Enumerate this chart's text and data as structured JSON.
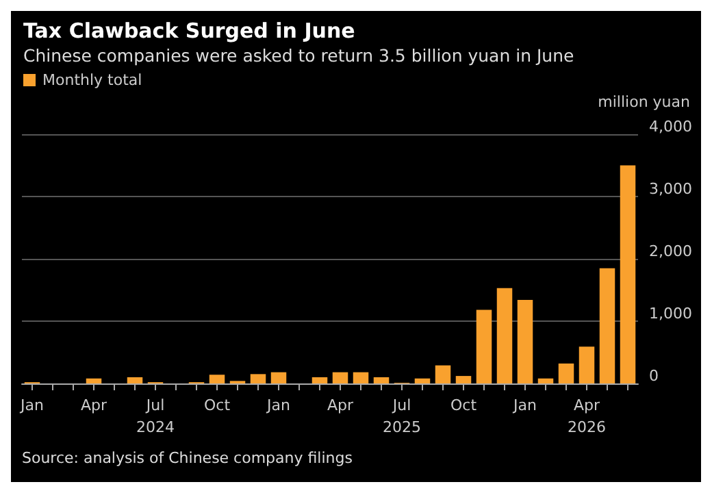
{
  "chart_data": {
    "type": "bar",
    "title": "Tax Clawback Surged in June",
    "subtitle": "Chinese companies were asked to return 3.5 billion yuan in June",
    "ylabel": "million yuan",
    "categories": [
      "Jan",
      null,
      null,
      "Apr",
      null,
      null,
      "Jul\n2024",
      null,
      null,
      "Oct",
      null,
      null,
      "Jan",
      null,
      null,
      "Apr",
      null,
      null,
      "Jul\n2025",
      null,
      null,
      "Oct",
      null,
      null,
      "Jan",
      null,
      null,
      "Apr\n2026",
      null,
      null
    ],
    "series": [
      {
        "name": "Monthly total",
        "color": "#f9a12e",
        "values": [
          20,
          0,
          0,
          80,
          0,
          100,
          20,
          0,
          20,
          140,
          40,
          150,
          180,
          0,
          100,
          180,
          180,
          100,
          10,
          80,
          290,
          120,
          1180,
          1530,
          1340,
          80,
          320,
          590,
          1850,
          3500
        ]
      }
    ],
    "ylim": [
      0,
      4000
    ],
    "yticks": [
      0,
      {
        "value": 1000,
        "label": "1,000"
      },
      {
        "value": 2000,
        "label": "2,000"
      },
      {
        "value": 3000,
        "label": "3,000"
      },
      {
        "value": 4000,
        "label": "4,000"
      }
    ],
    "grid": "y",
    "legend": "top left",
    "annotations": [
      "Source: analysis of Chinese company filings"
    ]
  }
}
